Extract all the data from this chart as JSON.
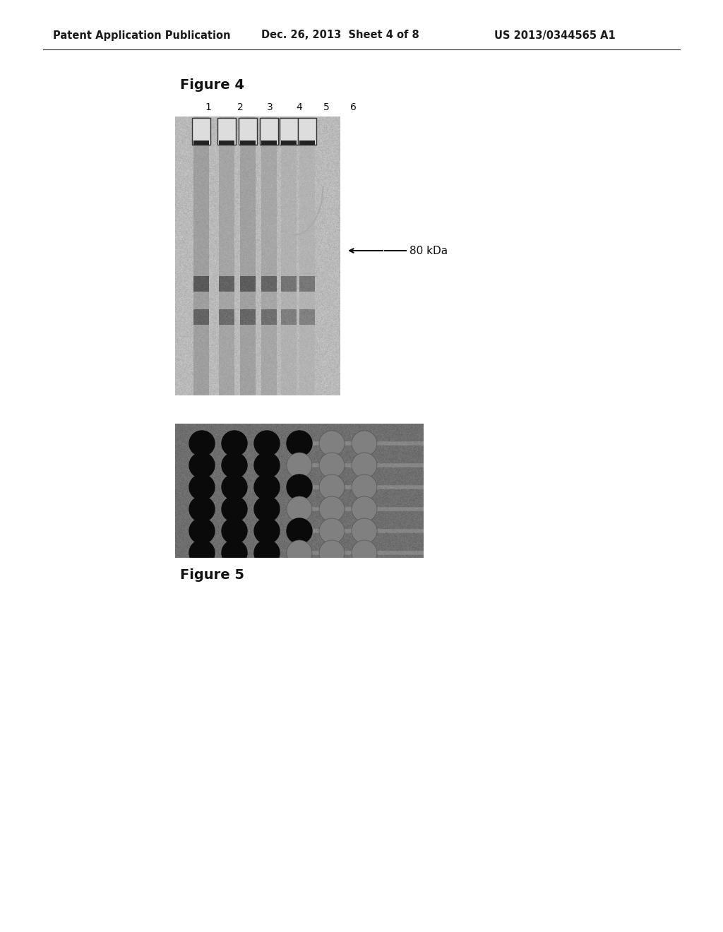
{
  "page_header_left": "Patent Application Publication",
  "page_header_mid": "Dec. 26, 2013  Sheet 4 of 8",
  "page_header_right": "US 2013/0344565 A1",
  "fig4_label": "Figure 4",
  "fig4_lane_labels": [
    "1",
    "2",
    "3",
    "4",
    "5",
    "6"
  ],
  "fig4_annotation": "80 kDa",
  "fig5_label": "Figure 5",
  "background_color": "#ffffff",
  "gel_bg_color": "#c8c8c8",
  "well_plate_bg": "#808080"
}
